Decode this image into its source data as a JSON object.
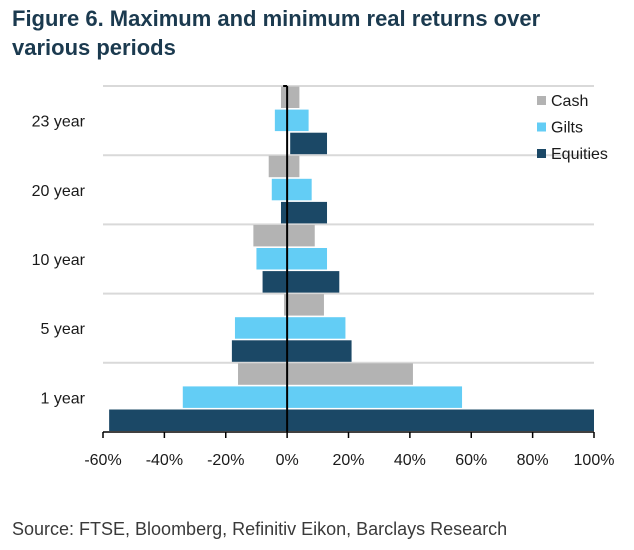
{
  "title": "Figure 6. Maximum and minimum real returns over various periods",
  "source": "Source: FTSE, Bloomberg, Refinitiv Eikon, Barclays Research",
  "chart_data": {
    "type": "bar",
    "orientation": "horizontal",
    "categories": [
      "1 year",
      "5 year",
      "10 year",
      "20 year",
      "23 year"
    ],
    "series": [
      {
        "name": "Cash",
        "color": "#b3b3b3",
        "min": [
          -16,
          -1,
          -11,
          -6,
          -2
        ],
        "max": [
          41,
          12,
          9,
          4,
          4
        ]
      },
      {
        "name": "Gilts",
        "color": "#63cdf5",
        "min": [
          -34,
          -17,
          -10,
          -5,
          -4
        ],
        "max": [
          57,
          19,
          13,
          8,
          7
        ]
      },
      {
        "name": "Equities",
        "color": "#1b4866",
        "min": [
          -58,
          -18,
          -8,
          -2,
          1
        ],
        "max": [
          100,
          21,
          17,
          13,
          13
        ]
      }
    ],
    "xticks": [
      "-60%",
      "-40%",
      "-20%",
      "0%",
      "20%",
      "40%",
      "60%",
      "80%",
      "100%"
    ],
    "xlim": [
      -60,
      100
    ],
    "legend_position": "top-right",
    "grid": "horizontal"
  }
}
